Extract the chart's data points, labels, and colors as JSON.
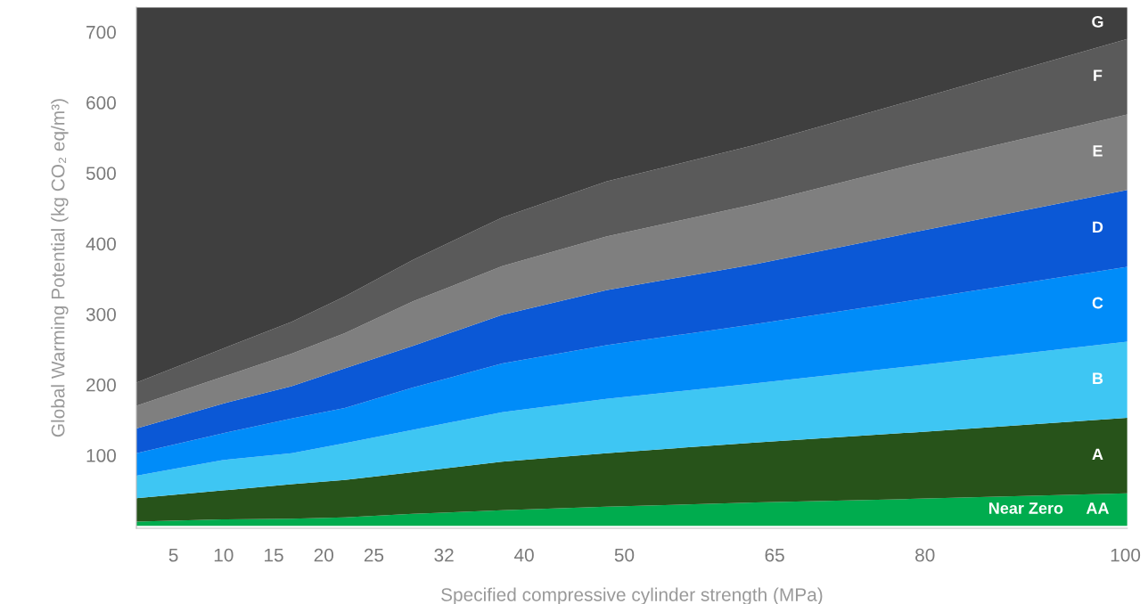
{
  "chart_data": {
    "type": "area",
    "stacked": true,
    "xlabel": "Specified compressive cylinder strength (MPa)",
    "ylabel": "Global Warming Potential (kg CO₂ eq/m³)",
    "x": [
      1.3,
      9.9,
      16.8,
      22.1,
      28.9,
      37.8,
      48.2,
      63.1,
      78.5,
      100.2
    ],
    "series": [
      {
        "name": "AA",
        "color": "#00ac4e",
        "values": [
          6,
          9,
          10,
          12,
          17,
          22,
          27,
          33,
          38,
          46
        ]
      },
      {
        "name": "A",
        "color": "#27531a",
        "values": [
          33,
          41,
          49,
          53,
          59,
          69,
          76,
          85,
          94,
          107
        ]
      },
      {
        "name": "B",
        "color": "#3ec6f3",
        "values": [
          32,
          43,
          44,
          52,
          60,
          70,
          77,
          84,
          94,
          108
        ]
      },
      {
        "name": "C",
        "color": "#008cf9",
        "values": [
          32,
          38,
          49,
          50,
          60,
          69,
          76,
          84,
          93,
          106
        ]
      },
      {
        "name": "D",
        "color": "#0b58d6",
        "values": [
          35,
          42,
          46,
          56,
          59,
          69,
          78,
          85,
          96,
          109
        ]
      },
      {
        "name": "E",
        "color": "#7f7f7f",
        "values": [
          32,
          38,
          46,
          50,
          63,
          69,
          76,
          85,
          96,
          107
        ]
      },
      {
        "name": "F",
        "color": "#5a5a5a",
        "values": [
          33,
          40,
          45,
          52,
          59,
          69,
          78,
          84,
          91,
          107
        ]
      },
      {
        "name": "G",
        "color": "#3f3f3f",
        "values": [
          532,
          484,
          446,
          410,
          358,
          298,
          247,
          195,
          133,
          45
        ]
      }
    ],
    "annotations": [
      "Near Zero"
    ],
    "xlim": [
      1.3,
      100.2
    ],
    "ylim": [
      -3.5,
      735
    ],
    "xticks": [
      5,
      10,
      15,
      20,
      25,
      32,
      40,
      50,
      65,
      80,
      100
    ],
    "yticks": [
      100,
      200,
      300,
      400,
      500,
      600,
      700
    ],
    "grid": false,
    "legend": false
  }
}
